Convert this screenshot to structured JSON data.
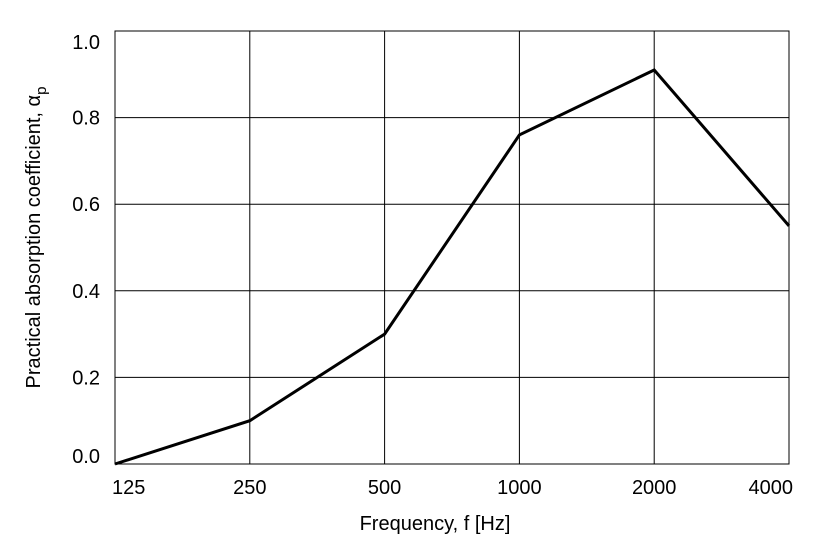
{
  "chart_data": {
    "type": "line",
    "title": "",
    "xlabel": "Frequency, f [Hz]",
    "ylabel": "Practical absorption coefficient, α",
    "ylabel_subscript": "p",
    "x_scale": "log2 (octave bands)",
    "categories": [
      "125",
      "250",
      "500",
      "1000",
      "2000",
      "4000"
    ],
    "y_ticks": [
      "0.0",
      "0.2",
      "0.4",
      "0.6",
      "0.8",
      "1.0"
    ],
    "ylim": [
      0,
      1.0
    ],
    "grid": true,
    "legend": "none",
    "series": [
      {
        "values": [
          0.0,
          0.1,
          0.3,
          0.76,
          0.91,
          0.55
        ],
        "color": "#000000"
      }
    ]
  }
}
